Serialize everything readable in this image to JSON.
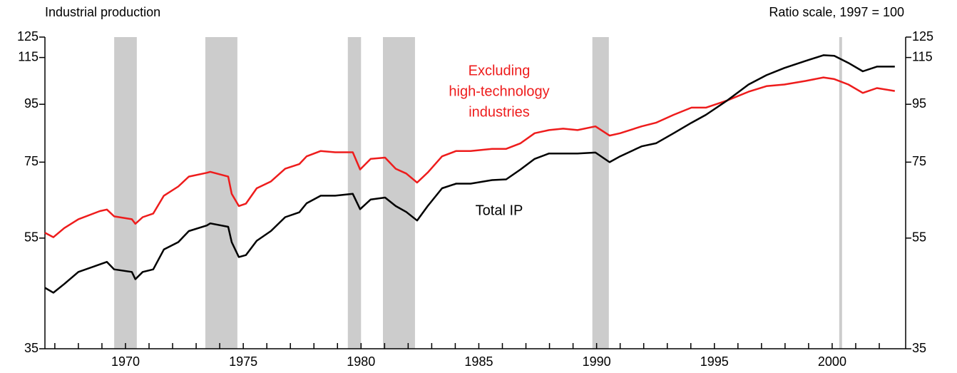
{
  "chart_data": {
    "type": "line",
    "y_axis_label": "Industrial production",
    "scale_note": "Ratio scale, 1997 = 100",
    "log_scale": true,
    "xlim": [
      1966.58,
      2003.12
    ],
    "ylim": [
      35,
      125
    ],
    "xticks": [
      1970,
      1975,
      1980,
      1985,
      1990,
      1995,
      2000
    ],
    "xminorticks": [
      1967,
      1968,
      1969,
      1970,
      1971,
      1972,
      1973,
      1974,
      1975,
      1976,
      1977,
      1978,
      1979,
      1980,
      1981,
      1982,
      1983,
      1984,
      1985,
      1986,
      1987,
      1988,
      1989,
      1990,
      1991,
      1992,
      1993,
      1994,
      1995,
      1996,
      1997,
      1998,
      1999,
      2000,
      2001,
      2002
    ],
    "yticks": [
      35,
      55,
      75,
      95,
      115,
      125
    ],
    "shade_color": "#cccccc",
    "shaded": [
      [
        1969.52,
        1970.48
      ],
      [
        1973.39,
        1974.75
      ],
      [
        1979.44,
        1980.0
      ],
      [
        1980.93,
        1982.29
      ],
      [
        1989.82,
        1990.52
      ],
      [
        2000.3,
        2000.42
      ]
    ],
    "x": [
      1966.58,
      1966.94,
      1967.4,
      1968.0,
      1968.91,
      1969.21,
      1969.52,
      1970.27,
      1970.42,
      1970.73,
      1971.18,
      1971.63,
      1972.24,
      1972.69,
      1973.45,
      1973.6,
      1974.36,
      1974.51,
      1974.81,
      1975.11,
      1975.57,
      1976.17,
      1976.78,
      1977.38,
      1977.69,
      1978.29,
      1978.9,
      1979.65,
      1979.96,
      1980.41,
      1981.02,
      1981.47,
      1981.92,
      1982.38,
      1982.83,
      1983.44,
      1984.04,
      1984.65,
      1985.56,
      1986.16,
      1986.77,
      1987.37,
      1987.98,
      1988.58,
      1989.19,
      1989.95,
      1990.55,
      1991.0,
      1991.91,
      1992.52,
      1993.27,
      1994.03,
      1994.64,
      1995.55,
      1996.45,
      1997.21,
      1997.97,
      1998.87,
      1999.63,
      2000.09,
      2000.69,
      2001.3,
      2001.9,
      2002.66
    ],
    "series": [
      {
        "label": [
          "Excluding",
          "high-technology",
          "industries"
        ],
        "color": "#ee1c1c",
        "values": [
          56.2,
          55.2,
          57.3,
          59.4,
          61.4,
          61.8,
          60.1,
          59.4,
          58.3,
          59.9,
          60.8,
          65.4,
          67.9,
          70.7,
          71.8,
          72.1,
          70.7,
          65.9,
          62.7,
          63.3,
          67.4,
          69.3,
          73.0,
          74.4,
          76.8,
          78.5,
          78.1,
          78.1,
          72.8,
          76.0,
          76.4,
          73.0,
          71.6,
          69.0,
          71.9,
          76.8,
          78.5,
          78.5,
          79.2,
          79.2,
          81.0,
          84.4,
          85.5,
          86.0,
          85.5,
          86.8,
          83.6,
          84.4,
          86.8,
          88.1,
          91.0,
          93.7,
          93.7,
          96.5,
          100.0,
          102.3,
          103.0,
          104.5,
          106.0,
          105.3,
          103.0,
          99.5,
          101.5,
          100.3
        ]
      },
      {
        "label": [
          "Total IP"
        ],
        "color": "#000000",
        "values": [
          44.9,
          44.0,
          45.6,
          47.9,
          49.4,
          49.9,
          48.4,
          47.9,
          46.5,
          47.9,
          48.4,
          52.5,
          54.1,
          56.6,
          57.9,
          58.4,
          57.6,
          54.1,
          50.9,
          51.3,
          54.4,
          56.6,
          59.9,
          61.1,
          63.4,
          65.4,
          65.4,
          65.9,
          61.9,
          64.4,
          64.9,
          62.7,
          61.2,
          59.1,
          62.7,
          67.4,
          68.7,
          68.7,
          69.7,
          69.9,
          72.8,
          76.0,
          77.7,
          77.7,
          77.7,
          78.0,
          75.0,
          76.8,
          80.0,
          81.0,
          84.4,
          88.1,
          91.0,
          96.5,
          103.0,
          107.0,
          110.2,
          113.4,
          116.1,
          115.8,
          112.5,
          108.7,
          110.8,
          110.8
        ]
      }
    ]
  }
}
